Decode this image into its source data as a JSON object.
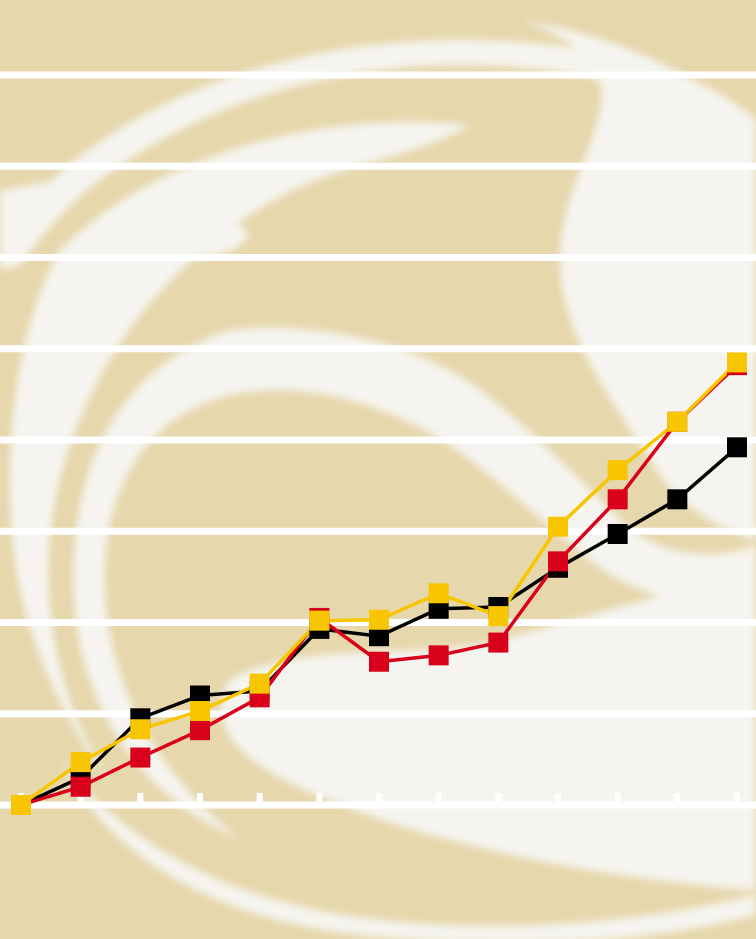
{
  "colors": {
    "background": "#E6D7AC",
    "swirl": "#F5F4F0",
    "gridline": "#FFFFFF",
    "series_black": "#000000",
    "series_red": "#D9001B",
    "series_yellow": "#F7C600"
  },
  "chart_data": {
    "type": "line",
    "title": "",
    "xlabel": "",
    "ylabel": "",
    "grid": true,
    "legend": "none",
    "x": [
      0,
      1,
      2,
      3,
      4,
      5,
      6,
      7,
      8,
      9,
      10,
      11,
      12
    ],
    "xlim": [
      0,
      12
    ],
    "ylim": [
      0,
      8
    ],
    "series": [
      {
        "color": "#000000",
        "values": [
          0,
          0.3,
          0.95,
          1.2,
          1.25,
          1.93,
          1.85,
          2.15,
          2.17,
          2.6,
          2.97,
          3.35,
          3.92
        ]
      },
      {
        "color": "#D9001B",
        "values": [
          0,
          0.2,
          0.52,
          0.82,
          1.18,
          2.05,
          1.57,
          1.64,
          1.78,
          2.67,
          3.35,
          4.2,
          4.82
        ]
      },
      {
        "color": "#F7C600",
        "values": [
          0,
          0.47,
          0.83,
          1.03,
          1.33,
          2.02,
          2.03,
          2.32,
          2.07,
          3.05,
          3.67,
          4.2,
          4.85
        ]
      }
    ]
  }
}
